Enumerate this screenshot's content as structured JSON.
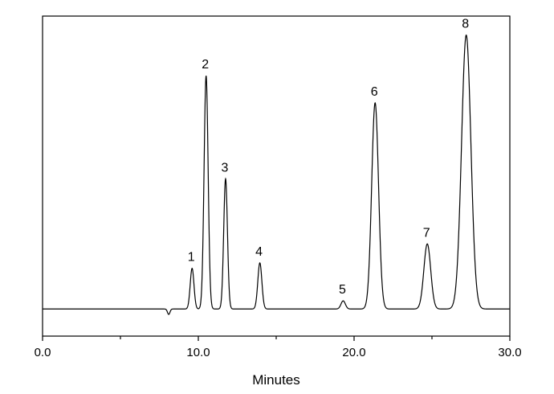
{
  "chart_data": {
    "type": "line",
    "title": "",
    "xlabel": "Minutes",
    "ylabel": "",
    "xlim": [
      0,
      30
    ],
    "ylim": [
      -0.1,
      1.08
    ],
    "x_ticks": [
      0,
      10,
      20,
      30
    ],
    "x_tick_labels": [
      "0.0",
      "10.0",
      "20.0",
      "30.0"
    ],
    "x_minor_ticks": [
      5,
      15,
      25
    ],
    "grid": false,
    "legend": "none",
    "line_color": "#000000",
    "baseline": 0,
    "dips": [
      {
        "x": 8.1,
        "height": -0.02,
        "width": 0.08
      }
    ],
    "peaks": [
      {
        "label": "1",
        "x": 9.6,
        "height": 0.15,
        "width": 0.12
      },
      {
        "label": "2",
        "x": 10.5,
        "height": 0.86,
        "width": 0.13
      },
      {
        "label": "3",
        "x": 11.75,
        "height": 0.48,
        "width": 0.12
      },
      {
        "label": "4",
        "x": 13.95,
        "height": 0.17,
        "width": 0.13
      },
      {
        "label": "5",
        "x": 19.3,
        "height": 0.03,
        "width": 0.14
      },
      {
        "label": "6",
        "x": 21.35,
        "height": 0.76,
        "width": 0.22
      },
      {
        "label": "7",
        "x": 24.7,
        "height": 0.24,
        "width": 0.22
      },
      {
        "label": "8",
        "x": 27.2,
        "height": 1.01,
        "width": 0.3
      }
    ]
  }
}
